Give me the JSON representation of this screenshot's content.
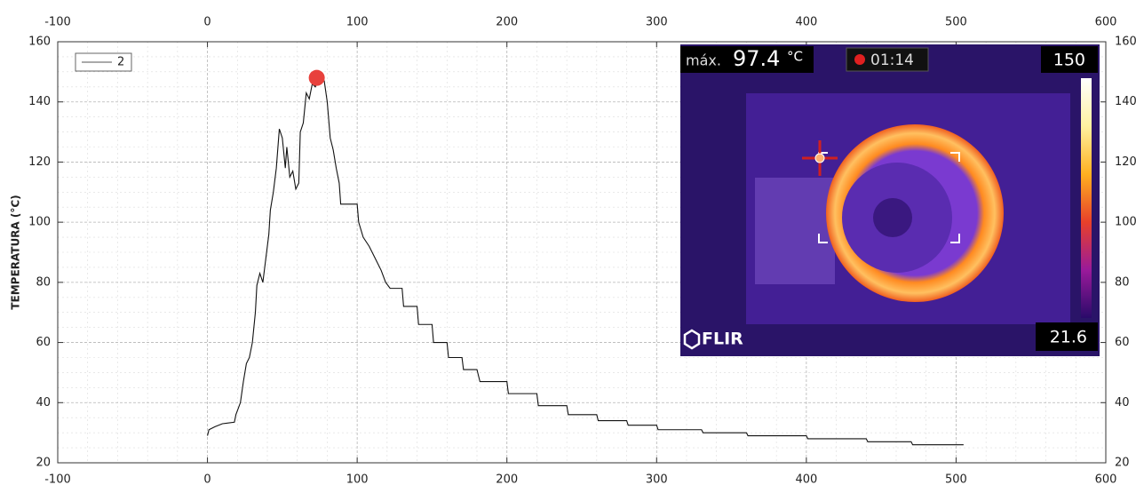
{
  "chart_data": {
    "type": "line",
    "ylabel": "TEMPERATURA (°C)",
    "xlim": [
      -100,
      600
    ],
    "xticks": [
      -100,
      0,
      100,
      200,
      300,
      400,
      500,
      600
    ],
    "ylim": [
      20,
      160
    ],
    "yticks": [
      20,
      40,
      60,
      80,
      100,
      120,
      140,
      160
    ],
    "grid": true,
    "legend": "upper left",
    "x": [
      0,
      1,
      5,
      10,
      18,
      19,
      22,
      24,
      26,
      28,
      30,
      32,
      33,
      35,
      37,
      39,
      41,
      42,
      44,
      46,
      48,
      50,
      52,
      53,
      55,
      57,
      59,
      61,
      62,
      64,
      66,
      68,
      70,
      72,
      75,
      78,
      80,
      82,
      84,
      86,
      88,
      89,
      100,
      101,
      104,
      108,
      112,
      116,
      119,
      122,
      130,
      131,
      140,
      141,
      150,
      151,
      160,
      161,
      170,
      171,
      180,
      182,
      200,
      201,
      220,
      221,
      240,
      241,
      260,
      261,
      280,
      281,
      300,
      301,
      330,
      331,
      360,
      361,
      400,
      401,
      440,
      441,
      470,
      471,
      505
    ],
    "series": [
      {
        "name": "2",
        "color": "#111111",
        "values": [
          29,
          31,
          32,
          33,
          33.5,
          36,
          40,
          47,
          53,
          55,
          60,
          70,
          79,
          83,
          80,
          88,
          96,
          104,
          110,
          118,
          131,
          128,
          118,
          125,
          115,
          117,
          111,
          113,
          130,
          133,
          143,
          141,
          146,
          145,
          148,
          147,
          140,
          128,
          124,
          118,
          113,
          106,
          106,
          100,
          95,
          92,
          88,
          84,
          80,
          78,
          78,
          72,
          72,
          66,
          66,
          60,
          60,
          55,
          55,
          51,
          51,
          47,
          47,
          43,
          43,
          39,
          39,
          36,
          36,
          34,
          34,
          32.5,
          32.5,
          31,
          31,
          30,
          30,
          29,
          29,
          28,
          28,
          27,
          27,
          26,
          26
        ]
      }
    ],
    "highlight": {
      "x": 73,
      "y": 148,
      "color": "#e8413c"
    },
    "inset": {
      "max_label": "máx.",
      "max_value": "97.4",
      "unit": "°C",
      "timer": "01:14",
      "scale_max": "150",
      "scale_min": "21.6",
      "brand": "FLIR"
    }
  }
}
